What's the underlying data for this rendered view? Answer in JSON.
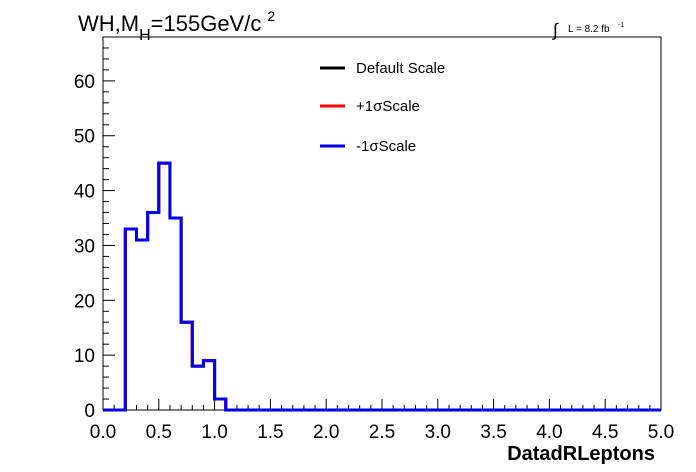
{
  "chart_data": {
    "type": "step-histogram",
    "title": {
      "main": "WH,M",
      "subscript": "H",
      "rest": "=155GeV/c",
      "superscript": "2"
    },
    "luminosity": {
      "integral": "∫",
      "text": "L = 8.2 fb",
      "superscript": "-1"
    },
    "xlabel": "DatadRLeptons",
    "ylabel": "",
    "xlim": [
      0,
      5
    ],
    "ylim": [
      0,
      68
    ],
    "x_ticks": [
      "0.0",
      "0.5",
      "1.0",
      "1.5",
      "2.0",
      "2.5",
      "3.0",
      "3.5",
      "4.0",
      "4.5",
      "5.0"
    ],
    "y_ticks": [
      "0",
      "10",
      "20",
      "30",
      "40",
      "50",
      "60"
    ],
    "x_tick_values": [
      0,
      0.5,
      1,
      1.5,
      2,
      2.5,
      3,
      3.5,
      4,
      4.5,
      5
    ],
    "y_tick_values": [
      0,
      10,
      20,
      30,
      40,
      50,
      60
    ],
    "bin_width": 0.1,
    "legend_placement": "top-center",
    "series": [
      {
        "name": "Default Scale",
        "color": "#000000",
        "values": [
          0,
          0,
          33,
          31,
          36,
          45,
          35,
          16,
          8,
          9,
          2,
          0,
          0,
          0,
          0,
          0,
          0,
          0,
          0,
          0,
          0,
          0,
          0,
          0,
          0,
          0,
          0,
          0,
          0,
          0,
          0,
          0,
          0,
          0,
          0,
          0,
          0,
          0,
          0,
          0,
          0,
          0,
          0,
          0,
          0,
          0,
          0,
          0,
          0,
          0
        ]
      },
      {
        "name": "+1σScale",
        "color": "#ff0000",
        "values": [
          0,
          0,
          33,
          31,
          36,
          45,
          35,
          16,
          8,
          9,
          2,
          0,
          0,
          0,
          0,
          0,
          0,
          0,
          0,
          0,
          0,
          0,
          0,
          0,
          0,
          0,
          0,
          0,
          0,
          0,
          0,
          0,
          0,
          0,
          0,
          0,
          0,
          0,
          0,
          0,
          0,
          0,
          0,
          0,
          0,
          0,
          0,
          0,
          0,
          0
        ]
      },
      {
        "name": "-1σScale",
        "color": "#0000ee",
        "values": [
          0,
          0,
          33,
          31,
          36,
          45,
          35,
          16,
          8,
          9,
          2,
          0,
          0,
          0,
          0,
          0,
          0,
          0,
          0,
          0,
          0,
          0,
          0,
          0,
          0,
          0,
          0,
          0,
          0,
          0,
          0,
          0,
          0,
          0,
          0,
          0,
          0,
          0,
          0,
          0,
          0,
          0,
          0,
          0,
          0,
          0,
          0,
          0,
          0,
          0
        ]
      }
    ]
  }
}
